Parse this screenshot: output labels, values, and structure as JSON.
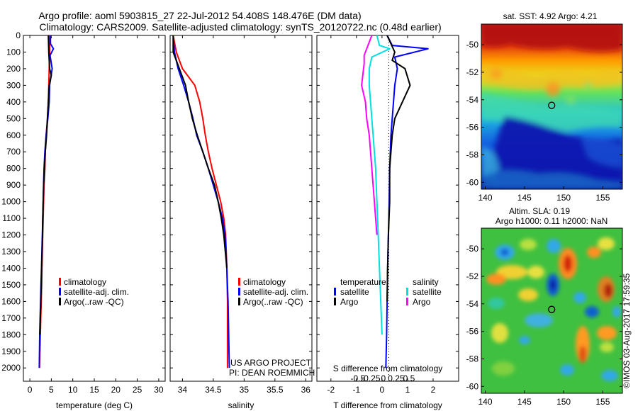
{
  "header": {
    "line1": "Argo profile: aoml 5903815_27 22-Jul-2012 54.408S 148.476E (DM data)",
    "line2": "Climatology: CARS2009. Satellite-adjusted climatology: synTS_20120722.nc (0.48d earlier)"
  },
  "side_text": {
    "project": "US ARGO PROJECT",
    "pi": "PI: DEAN ROEMMICH",
    "footer": "©IMOS 03-Aug-2017 17:59:35"
  },
  "colors": {
    "climatology": "#ff0000",
    "satellite": "#0000ff",
    "argo": "#000000",
    "cyan": "#00e0e0",
    "magenta": "#ff00ff"
  },
  "chart_data": [
    {
      "type": "line",
      "xlabel": "temperature (deg C)",
      "ylabel": "",
      "xlim": [
        -1.5,
        31.5
      ],
      "ylim": [
        2080,
        0
      ],
      "xticks": [
        0,
        5,
        10,
        15,
        20,
        25,
        30
      ],
      "yticks": [
        0,
        100,
        200,
        300,
        400,
        500,
        600,
        700,
        800,
        900,
        1000,
        1100,
        1200,
        1300,
        1400,
        1500,
        1600,
        1700,
        1800,
        1900,
        2000
      ],
      "legend": {
        "position": "lower-center",
        "entries": [
          "climatology",
          "satellite-adj. clim.",
          "Argo(..raw -QC)"
        ]
      },
      "series": [
        {
          "name": "climatology",
          "color": "#ff0000",
          "x": [
            4.6,
            4.6,
            4.5,
            4.4,
            4.3,
            4.1,
            3.8,
            3.6,
            3.5,
            3.3,
            3.2,
            3.1,
            3.0,
            2.9,
            2.8,
            2.75,
            2.65,
            2.55,
            2.45,
            2.35,
            2.25
          ],
          "y": [
            0,
            100,
            200,
            300,
            400,
            500,
            600,
            700,
            800,
            900,
            1000,
            1100,
            1200,
            1300,
            1400,
            1500,
            1600,
            1700,
            1800,
            1900,
            2000
          ]
        },
        {
          "name": "satellite-adj. clim.",
          "color": "#0000ff",
          "x": [
            4.8,
            4.8,
            5.5,
            4.7,
            5.2,
            4.6,
            4.5,
            4.2,
            3.8,
            3.5,
            3.3,
            3.2,
            3.1,
            3.0,
            2.9,
            2.8,
            2.7,
            2.6,
            2.5,
            2.4,
            2.3,
            2.2
          ],
          "y": [
            0,
            50,
            80,
            120,
            200,
            300,
            400,
            500,
            600,
            700,
            800,
            900,
            1000,
            1100,
            1200,
            1300,
            1400,
            1500,
            1600,
            1700,
            1800,
            2000
          ]
        },
        {
          "name": "Argo(..raw -QC)",
          "color": "#000000",
          "x": [
            4.3,
            4.4,
            4.6,
            5.0,
            4.5,
            4.3,
            4.1,
            3.9,
            3.6,
            3.4,
            3.2,
            3.1,
            3.0,
            2.95,
            2.85,
            2.75,
            2.65,
            2.55,
            2.45,
            2.35
          ],
          "y": [
            0,
            100,
            200,
            240,
            300,
            400,
            500,
            600,
            700,
            800,
            900,
            1000,
            1100,
            1200,
            1300,
            1400,
            1500,
            1600,
            1700,
            1800
          ]
        }
      ]
    },
    {
      "type": "line",
      "xlabel": "salinity",
      "ylabel": "",
      "xlim": [
        33.8,
        36.1
      ],
      "ylim": [
        2080,
        0
      ],
      "xticks": [
        34,
        34.5,
        35,
        35.5,
        36
      ],
      "xticklabels": [
        "34",
        "34.5",
        "35",
        "35.5",
        "36"
      ],
      "legend": {
        "position": "lower-center",
        "entries": [
          "climatology",
          "satellite-adj. clim.",
          "Argo(..raw -QC)"
        ]
      },
      "series": [
        {
          "name": "climatology",
          "color": "#ff0000",
          "x": [
            33.85,
            33.9,
            34.0,
            34.2,
            34.28,
            34.33,
            34.37,
            34.42,
            34.48,
            34.55,
            34.62,
            34.67,
            34.7,
            34.72,
            34.73,
            34.73,
            34.73
          ],
          "y": [
            0,
            100,
            200,
            300,
            400,
            500,
            600,
            700,
            800,
            900,
            1000,
            1100,
            1200,
            1400,
            1600,
            1800,
            2000
          ]
        },
        {
          "name": "satellite-adj. clim.",
          "color": "#0000ff",
          "x": [
            33.85,
            33.87,
            33.93,
            34.02,
            34.1,
            34.17,
            34.23,
            34.33,
            34.42,
            34.5,
            34.58,
            34.65,
            34.69,
            34.72,
            34.74,
            34.75,
            34.76
          ],
          "y": [
            0,
            100,
            200,
            300,
            400,
            500,
            600,
            700,
            800,
            900,
            1000,
            1100,
            1200,
            1400,
            1600,
            1800,
            2000
          ]
        },
        {
          "name": "Argo(..raw -QC)",
          "color": "#000000",
          "x": [
            33.85,
            33.85,
            33.95,
            34.05,
            34.1,
            34.16,
            34.24,
            34.33,
            34.42,
            34.52,
            34.58,
            34.63,
            34.67,
            34.72
          ],
          "y": [
            0,
            100,
            200,
            300,
            400,
            500,
            600,
            700,
            800,
            900,
            1000,
            1100,
            1200,
            1400
          ]
        }
      ]
    },
    {
      "type": "line",
      "xlabel": "T difference from climatology",
      "xlabel_top": "S difference from climatology",
      "xlim": [
        -2.55,
        3.0
      ],
      "ylim": [
        2080,
        0
      ],
      "xticks": [
        -2,
        -1,
        0,
        1,
        2
      ],
      "xticks_top": [
        -0.5,
        -0.25,
        0,
        0.25,
        0.5
      ],
      "legend": {
        "position": "lower-center",
        "groups": [
          {
            "title": "temperature",
            "entries": [
              "satellite",
              "Argo"
            ]
          },
          {
            "title": "salinity",
            "entries": [
              "satellite",
              "Argo"
            ]
          }
        ]
      },
      "series": [
        {
          "name": "temperature satellite",
          "color": "#0000ff",
          "x": [
            0.2,
            0.4,
            1.8,
            0.5,
            0.6,
            0.5,
            0.45,
            0.4,
            0.35,
            0.3,
            0.28,
            0.25,
            0.22,
            0.2,
            0.18,
            0.15
          ],
          "y": [
            0,
            60,
            80,
            130,
            200,
            300,
            400,
            500,
            600,
            800,
            1000,
            1200,
            1400,
            1600,
            1800,
            2000
          ]
        },
        {
          "name": "temperature Argo",
          "color": "#000000",
          "x": [
            0.2,
            0.5,
            0.4,
            0.9,
            1.1,
            0.8,
            0.5,
            0.4,
            0.35,
            0.3,
            0.3,
            0.25,
            0.22,
            0.2
          ],
          "y": [
            0,
            100,
            150,
            200,
            300,
            400,
            500,
            600,
            700,
            800,
            1000,
            1200,
            1400,
            1600
          ]
        },
        {
          "name": "salinity satellite",
          "color": "#00e0e0",
          "x": [
            -0.2,
            -0.1,
            0.3,
            -0.4,
            -0.5,
            -0.5,
            -0.45,
            -0.4,
            -0.35,
            -0.3,
            -0.25,
            -0.2,
            -0.15,
            -0.1,
            -0.05,
            0.0
          ],
          "y": [
            0,
            60,
            80,
            130,
            200,
            300,
            400,
            500,
            600,
            700,
            800,
            1000,
            1200,
            1400,
            1600,
            1800
          ]
        },
        {
          "name": "salinity Argo",
          "color": "#ff00ff",
          "x": [
            -0.4,
            -0.7,
            -0.7,
            -0.8,
            -0.65,
            -0.6,
            -0.5,
            -0.45,
            -0.4,
            -0.35,
            -0.3,
            -0.2
          ],
          "y": [
            0,
            120,
            170,
            300,
            400,
            500,
            600,
            700,
            800,
            900,
            1000,
            1200
          ]
        }
      ]
    },
    {
      "type": "heatmap",
      "title": "sat. SST: 4.92  Argo: 4.21",
      "xlim": [
        139.5,
        157.5
      ],
      "ylim": [
        -60.5,
        -48.5
      ],
      "xticks": [
        140,
        145,
        150,
        155
      ],
      "yticks": [
        -50,
        -52,
        -54,
        -56,
        -58,
        -60
      ],
      "marker": {
        "lon": 148.476,
        "lat": -54.408
      }
    },
    {
      "type": "heatmap",
      "title": "Altim. SLA: 0.19",
      "subtitle": "Argo h1000: 0.11 h2000: NaN",
      "xlim": [
        139.5,
        157.5
      ],
      "ylim": [
        -60.5,
        -48.5
      ],
      "xticks": [
        140,
        145,
        150,
        155
      ],
      "yticks": [
        -50,
        -52,
        -54,
        -56,
        -58,
        -60
      ],
      "marker": {
        "lon": 148.476,
        "lat": -54.408
      }
    }
  ]
}
